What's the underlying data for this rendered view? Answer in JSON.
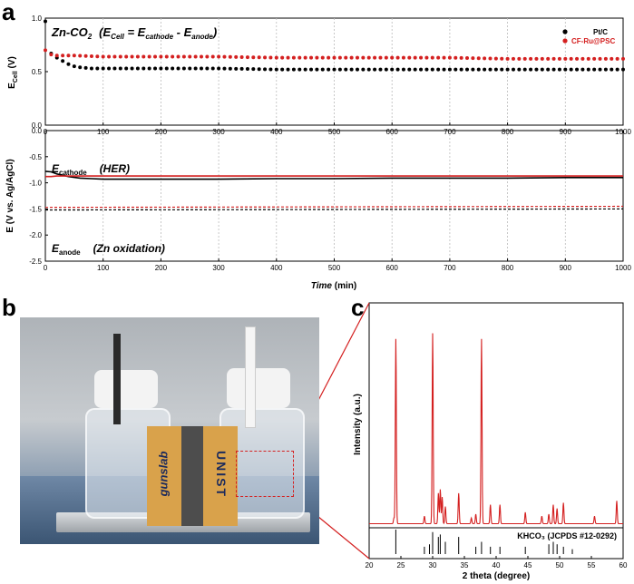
{
  "panels": {
    "a": "a",
    "b": "b",
    "c": "c"
  },
  "panel_a_top": {
    "annotation_main": "Zn-CO",
    "annotation_sub2": "2",
    "annotation_eq": "(E",
    "annotation_eq_sub": "Cell",
    "annotation_eq_rest": " = E",
    "annotation_eq_sub2": "cathode",
    "annotation_eq_rest2": " - E",
    "annotation_eq_sub3": "anode",
    "annotation_eq_close": ")",
    "ylabel_main": "E",
    "ylabel_sub": "Cell",
    "ylabel_unit": " (V)"
  },
  "panel_a_bottom": {
    "cathode_label": "E",
    "cathode_sub": "cathode",
    "cathode_note": "(HER)",
    "anode_label": "E",
    "anode_sub": "anode",
    "anode_note": "(Zn oxidation)",
    "ylabel": "E (V vs. Ag/AgCl)",
    "xlabel_main": "Time",
    "xlabel_unit": " (min)"
  },
  "panel_c": {
    "ylabel": "Intensity (a.u.)",
    "xlabel": "2 theta (degree)",
    "reference_label": "KHCO₃ (JCPDS #12-0292)"
  },
  "photo_labels": {
    "left": "gunslab",
    "right": "UNIST"
  },
  "colors": {
    "ptc": "#000000",
    "cf": "#d42020",
    "red_text": "#d42020"
  },
  "chart_data": [
    {
      "type": "scatter",
      "title": "",
      "xlabel": "",
      "ylabel": "ECell (V)",
      "xlim": [
        0,
        1000
      ],
      "ylim": [
        0,
        1.0
      ],
      "xticks": [
        0,
        100,
        200,
        300,
        400,
        500,
        600,
        700,
        800,
        900,
        1000
      ],
      "yticks": [
        0.0,
        0.5,
        1.0
      ],
      "grid": "vertical dashed",
      "legend": "top-right",
      "series": [
        {
          "name": "Pt/C",
          "color": "#000000",
          "x": [
            0,
            10,
            20,
            30,
            40,
            50,
            60,
            80,
            100,
            150,
            200,
            300,
            400,
            500,
            600,
            700,
            800,
            900,
            1000
          ],
          "y": [
            0.97,
            0.67,
            0.63,
            0.6,
            0.57,
            0.55,
            0.54,
            0.53,
            0.53,
            0.53,
            0.53,
            0.53,
            0.52,
            0.52,
            0.52,
            0.52,
            0.52,
            0.52,
            0.52
          ]
        },
        {
          "name": "CF-Ru@PSC",
          "color": "#d42020",
          "x": [
            0,
            10,
            20,
            50,
            100,
            200,
            300,
            400,
            500,
            600,
            700,
            800,
            900,
            1000
          ],
          "y": [
            0.7,
            0.66,
            0.65,
            0.65,
            0.64,
            0.64,
            0.64,
            0.63,
            0.63,
            0.63,
            0.63,
            0.62,
            0.62,
            0.62
          ]
        }
      ]
    },
    {
      "type": "line",
      "title": "",
      "xlabel": "Time (min)",
      "ylabel": "E (V vs. Ag/AgCl)",
      "xlim": [
        0,
        1000
      ],
      "ylim": [
        -2.5,
        0
      ],
      "xticks": [
        0,
        100,
        200,
        300,
        400,
        500,
        600,
        700,
        800,
        900,
        1000
      ],
      "yticks": [
        -2.5,
        -2.0,
        -1.5,
        -1.0,
        -0.5,
        0.0
      ],
      "grid": "vertical dashed",
      "series": [
        {
          "color": "#000000",
          "style": "solid",
          "x": [
            0,
            10,
            20,
            40,
            60,
            80,
            100,
            200,
            300,
            400,
            500,
            600,
            700,
            800,
            900,
            1000
          ],
          "y": [
            -0.78,
            -0.79,
            -0.83,
            -0.88,
            -0.91,
            -0.92,
            -0.93,
            -0.93,
            -0.93,
            -0.92,
            -0.92,
            -0.91,
            -0.91,
            -0.91,
            -0.9,
            -0.9
          ]
        },
        {
          "color": "#d42020",
          "style": "solid",
          "x": [
            0,
            10,
            20,
            50,
            100,
            200,
            300,
            400,
            500,
            600,
            700,
            800,
            900,
            1000
          ],
          "y": [
            -0.88,
            -0.88,
            -0.87,
            -0.87,
            -0.87,
            -0.87,
            -0.87,
            -0.87,
            -0.87,
            -0.87,
            -0.87,
            -0.87,
            -0.87,
            -0.87
          ]
        },
        {
          "color": "#000000",
          "style": "dashed",
          "x": [
            0,
            1000
          ],
          "y": [
            -1.52,
            -1.5
          ]
        },
        {
          "color": "#d42020",
          "style": "dashed",
          "x": [
            0,
            1000
          ],
          "y": [
            -1.47,
            -1.45
          ]
        }
      ]
    },
    {
      "type": "line",
      "title": "",
      "xlabel": "2 theta (degree)",
      "ylabel": "Intensity (a.u.)",
      "xlim": [
        20,
        60
      ],
      "xticks": [
        20,
        25,
        30,
        35,
        40,
        45,
        50,
        55,
        60
      ],
      "series": [
        {
          "name": "XRD",
          "color": "#d42020",
          "peaks_x": [
            23.9,
            24.2,
            28.7,
            30.0,
            30.9,
            31.2,
            31.5,
            32.0,
            34.1,
            36.1,
            36.8,
            37.7,
            39.1,
            40.6,
            44.6,
            47.2,
            48.3,
            49.0,
            49.6,
            50.6,
            55.5,
            59.0
          ],
          "peaks_y": [
            0.03,
            0.97,
            0.04,
            1.0,
            0.16,
            0.18,
            0.14,
            0.09,
            0.16,
            0.03,
            0.05,
            0.97,
            0.1,
            0.1,
            0.06,
            0.04,
            0.05,
            0.1,
            0.08,
            0.11,
            0.04,
            0.12
          ]
        },
        {
          "name": "KHCO₃ (JCPDS #12-0292)",
          "color": "#000000",
          "ref_x": [
            24.2,
            28.7,
            29.5,
            30.0,
            30.9,
            31.2,
            32.0,
            34.1,
            36.8,
            37.7,
            39.1,
            40.6,
            44.6,
            48.3,
            49.0,
            49.6,
            50.6,
            52.0
          ],
          "ref_y": [
            1.0,
            0.3,
            0.4,
            0.9,
            0.7,
            0.8,
            0.5,
            0.7,
            0.3,
            0.5,
            0.3,
            0.3,
            0.3,
            0.4,
            0.5,
            0.4,
            0.3,
            0.2
          ]
        }
      ]
    }
  ]
}
